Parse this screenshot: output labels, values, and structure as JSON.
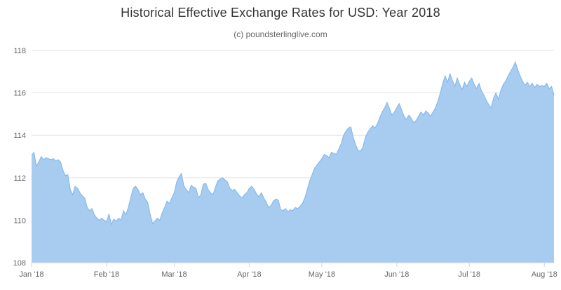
{
  "header": {
    "title": "Historical Effective Exchange Rates for USD: Year 2018",
    "subtitle": "(c) poundsterlinglive.com"
  },
  "colors": {
    "title_text": "#333333",
    "subtitle_text": "#666666",
    "axis_label": "#666666",
    "grid_line": "#e6e6e6",
    "axis_line": "#ccd6eb",
    "series_line": "#7cb5ec",
    "series_fill": "#a8ccf0"
  },
  "chart_data": {
    "type": "area",
    "title": "Historical Effective Exchange Rates for USD: Year 2018",
    "subtitle": "(c) poundsterlinglive.com",
    "xlabel": "",
    "ylabel": "",
    "ylim": [
      108,
      118
    ],
    "y_ticks": [
      108,
      110,
      112,
      114,
      116,
      118
    ],
    "x_tick_labels": [
      "Jan '18",
      "Feb '18",
      "Mar '18",
      "Apr '18",
      "May '18",
      "Jun '18",
      "Jul '18",
      "Aug '18"
    ],
    "x_tick_days": [
      0,
      31,
      59,
      90,
      120,
      151,
      181,
      212
    ],
    "grid": true,
    "legend": false,
    "values": [
      113.05,
      113.2,
      112.55,
      112.75,
      113.0,
      112.85,
      112.95,
      112.9,
      112.85,
      112.9,
      112.8,
      112.85,
      112.75,
      112.35,
      112.1,
      112.15,
      111.45,
      111.2,
      111.6,
      111.5,
      111.3,
      111.15,
      111.05,
      110.6,
      110.45,
      110.55,
      110.25,
      110.1,
      110.0,
      110.1,
      110.0,
      109.9,
      110.3,
      109.8,
      110.05,
      109.95,
      110.1,
      110.0,
      110.45,
      110.25,
      110.6,
      111.05,
      111.5,
      111.6,
      111.45,
      111.2,
      111.3,
      111.0,
      110.85,
      110.3,
      109.85,
      109.95,
      110.1,
      110.0,
      110.35,
      110.6,
      110.9,
      110.8,
      111.05,
      111.3,
      111.8,
      112.05,
      112.2,
      111.6,
      111.45,
      111.3,
      111.65,
      111.55,
      111.5,
      111.05,
      111.2,
      111.7,
      111.75,
      111.45,
      111.3,
      111.2,
      111.55,
      111.85,
      111.95,
      112.0,
      111.9,
      111.8,
      111.5,
      111.4,
      111.45,
      111.3,
      111.15,
      111.05,
      111.2,
      111.3,
      111.5,
      111.6,
      111.45,
      111.25,
      111.1,
      111.3,
      111.05,
      110.85,
      110.6,
      110.7,
      110.9,
      111.0,
      110.95,
      110.5,
      110.45,
      110.55,
      110.4,
      110.5,
      110.45,
      110.6,
      110.55,
      110.65,
      110.8,
      111.05,
      111.45,
      111.85,
      112.15,
      112.45,
      112.6,
      112.75,
      112.9,
      113.1,
      113.05,
      112.95,
      113.2,
      113.15,
      113.1,
      113.35,
      113.6,
      114.0,
      114.2,
      114.35,
      114.4,
      113.9,
      113.55,
      113.3,
      113.25,
      113.45,
      113.9,
      114.15,
      114.3,
      114.45,
      114.35,
      114.55,
      114.85,
      115.1,
      115.3,
      115.55,
      115.25,
      114.95,
      115.1,
      115.3,
      115.5,
      115.2,
      114.9,
      114.75,
      114.95,
      114.8,
      114.6,
      114.7,
      114.9,
      115.1,
      114.95,
      115.15,
      115.05,
      114.9,
      115.1,
      115.3,
      115.6,
      116.0,
      116.45,
      116.8,
      116.5,
      116.9,
      116.6,
      116.3,
      116.7,
      116.4,
      116.15,
      116.5,
      116.3,
      116.55,
      116.7,
      116.4,
      116.2,
      116.45,
      116.1,
      115.9,
      115.65,
      115.45,
      115.3,
      115.75,
      116.0,
      115.7,
      116.1,
      116.4,
      116.55,
      116.8,
      117.0,
      117.2,
      117.45,
      117.1,
      116.8,
      116.55,
      116.35,
      116.5,
      116.3,
      116.45,
      116.25,
      116.4,
      116.3,
      116.35,
      116.3,
      116.45,
      116.2,
      116.3,
      115.9
    ]
  }
}
